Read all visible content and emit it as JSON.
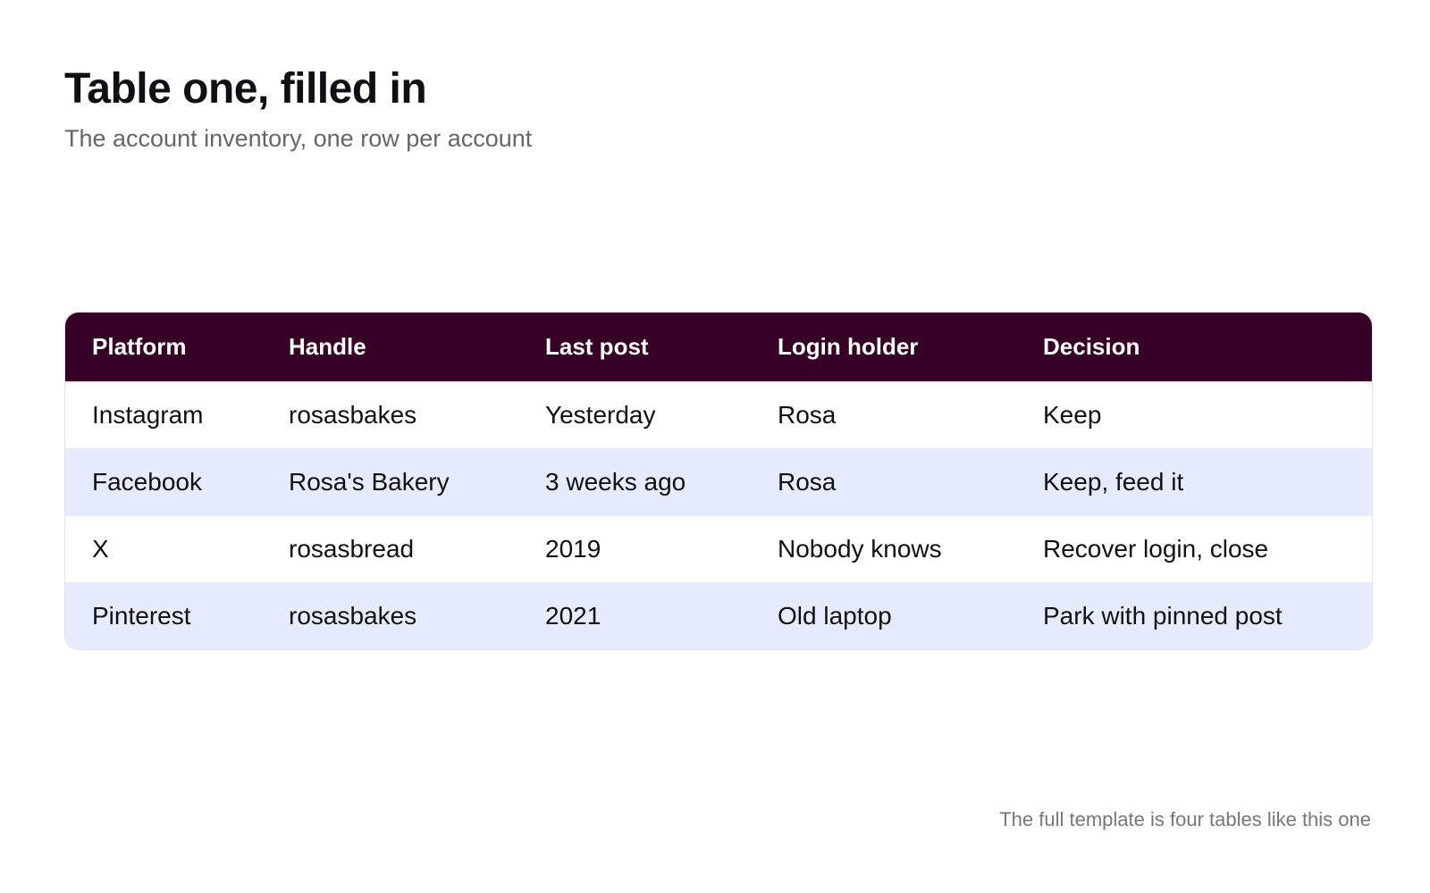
{
  "header": {
    "title": "Table one, filled in",
    "subtitle": "The account inventory, one row per account"
  },
  "table": {
    "columns": [
      "Platform",
      "Handle",
      "Last post",
      "Login holder",
      "Decision"
    ],
    "rows": [
      [
        "Instagram",
        "rosasbakes",
        "Yesterday",
        "Rosa",
        "Keep"
      ],
      [
        "Facebook",
        "Rosa's Bakery",
        "3 weeks ago",
        "Rosa",
        "Keep, feed it"
      ],
      [
        "X",
        "rosasbread",
        "2019",
        "Nobody knows",
        "Recover login, close"
      ],
      [
        "Pinterest",
        "rosasbakes",
        "2021",
        "Old laptop",
        "Park with pinned post"
      ]
    ]
  },
  "footer": {
    "note": "The full template is four tables like this one"
  },
  "colors": {
    "header_bg": "#370026",
    "alt_row_bg": "#e6ebfd",
    "text": "#111111"
  }
}
